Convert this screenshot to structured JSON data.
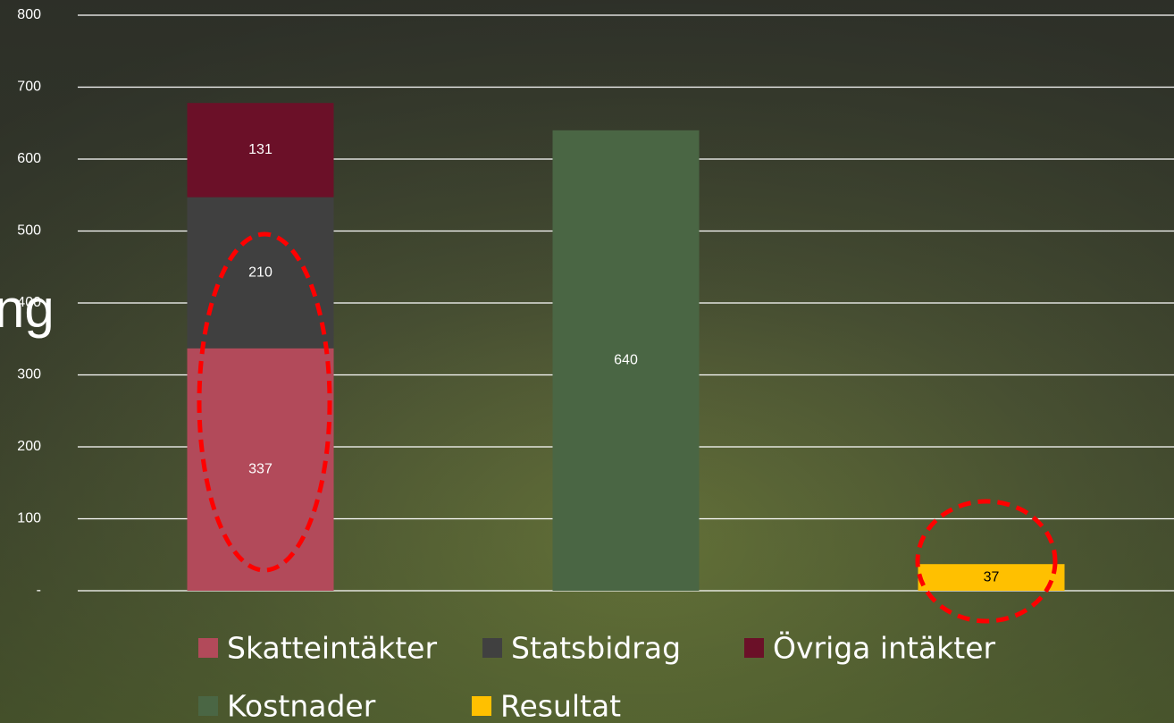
{
  "background_text": "ng",
  "chart_data": {
    "type": "stacked_bar",
    "categories": [
      null,
      null,
      null
    ],
    "series": [
      {
        "name": "Skatteintäkter",
        "color": "#b24a5a",
        "values": [
          337,
          null,
          null
        ]
      },
      {
        "name": "Statsbidrag",
        "color": "#404040",
        "values": [
          210,
          null,
          null
        ]
      },
      {
        "name": "Övriga intäkter",
        "color": "#6b1028",
        "values": [
          131,
          null,
          null
        ]
      },
      {
        "name": "Kostnader",
        "color": "#4a6644",
        "values": [
          null,
          640,
          null
        ]
      },
      {
        "name": "Resultat",
        "color": "#ffc000",
        "values": [
          null,
          null,
          37
        ]
      }
    ],
    "ylim": [
      0,
      800
    ],
    "yticks": [
      {
        "value": 0,
        "label": "-"
      },
      100,
      200,
      300,
      400,
      500,
      600,
      700,
      800
    ],
    "grid": true
  }
}
